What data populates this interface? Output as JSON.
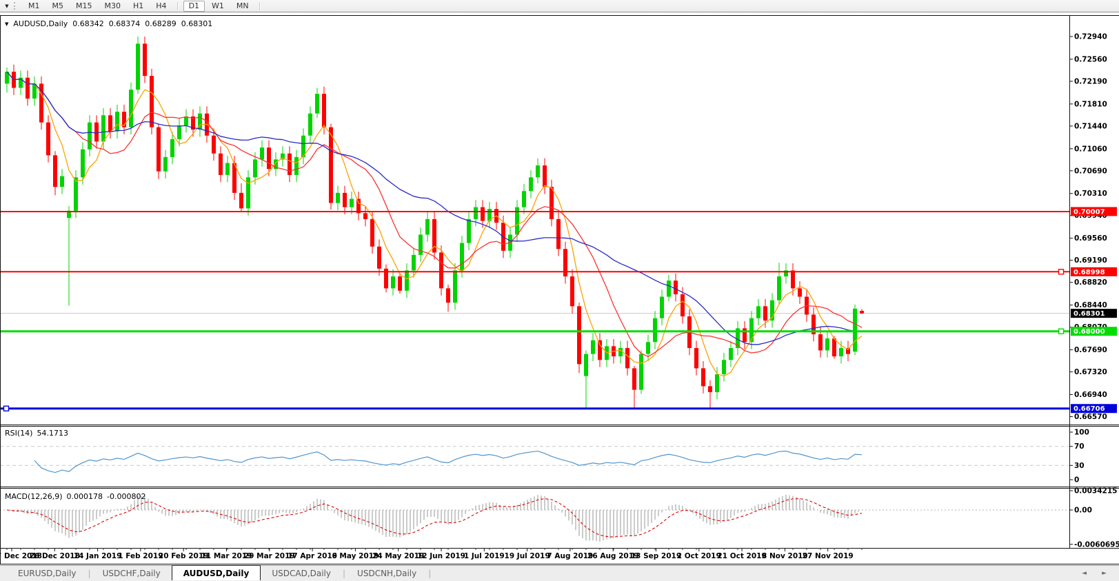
{
  "toolbar": {
    "dropdown_icon": "▼",
    "timeframes": [
      "M1",
      "M5",
      "M15",
      "M30",
      "H1",
      "H4",
      "D1",
      "W1",
      "MN"
    ],
    "active_timeframe": "D1",
    "separator_before": "D1"
  },
  "header": {
    "collapse_icon": "▼",
    "symbol": "AUDUSD,Daily",
    "open": "0.68342",
    "high": "0.68374",
    "low": "0.68289",
    "close": "0.68301"
  },
  "chart_data": {
    "type": "candlestick",
    "symbol": "AUDUSD",
    "timeframe": "Daily",
    "last_quote": {
      "open": 0.68342,
      "high": 0.68374,
      "low": 0.68289,
      "close": 0.68301
    },
    "price_axis_ticks": [
      "0.72940",
      "0.72560",
      "0.72190",
      "0.71810",
      "0.71440",
      "0.71060",
      "0.70690",
      "0.70310",
      "0.69940",
      "0.69560",
      "0.69190",
      "0.68820",
      "0.68440",
      "0.68070",
      "0.67690",
      "0.67320",
      "0.66940",
      "0.66570"
    ],
    "date_ticks": [
      "7 Dec 2018",
      "26 Dec 2018",
      "14 Jan 2019",
      "1 Feb 2019",
      "20 Feb 2019",
      "11 Mar 2019",
      "29 Mar 2019",
      "17 Apr 2019",
      "6 May 2019",
      "24 May 2019",
      "12 Jun 2019",
      "1 Jul 2019",
      "19 Jul 2019",
      "7 Aug 2019",
      "26 Aug 2019",
      "13 Sep 2019",
      "2 Oct 2019",
      "21 Oct 2019",
      "8 Nov 2019",
      "27 Nov 2019"
    ],
    "up_color": "#00d400",
    "down_color": "#ff0000",
    "default_wick": 0.0012,
    "candles": [
      [
        0.7215,
        0.7242,
        0.72,
        0.7235
      ],
      [
        0.7235,
        0.7208
      ],
      [
        0.7208,
        0.7225
      ],
      [
        0.7225,
        0.719
      ],
      [
        0.719,
        0.7215
      ],
      [
        0.7215,
        0.715
      ],
      [
        0.715,
        0.7095
      ],
      [
        0.7095,
        0.7102,
        0.7028,
        0.7042
      ],
      [
        0.7042,
        0.706
      ],
      [
        0.699,
        0.701,
        0.6843,
        0.7002
      ],
      [
        0.7002,
        0.7058
      ],
      [
        0.7058,
        0.7105
      ],
      [
        0.7105,
        0.715
      ],
      [
        0.715,
        0.7118
      ],
      [
        0.7118,
        0.7162
      ],
      [
        0.7162,
        0.7135
      ],
      [
        0.7135,
        0.7168
      ],
      [
        0.7168,
        0.7142
      ],
      [
        0.7142,
        0.7205
      ],
      [
        0.7205,
        0.7294,
        0.7198,
        0.7282
      ],
      [
        0.7282,
        0.7228
      ],
      [
        0.7228,
        0.7142
      ],
      [
        0.7142,
        0.7148,
        0.7055,
        0.7068
      ],
      [
        0.7068,
        0.7092
      ],
      [
        0.7092,
        0.7122
      ],
      [
        0.7122,
        0.7145
      ],
      [
        0.7145,
        0.716
      ],
      [
        0.716,
        0.7138
      ],
      [
        0.7138,
        0.7165
      ],
      [
        0.7165,
        0.7128
      ],
      [
        0.7128,
        0.7098
      ],
      [
        0.7098,
        0.7062
      ],
      [
        0.7062,
        0.7082
      ],
      [
        0.7082,
        0.7032
      ],
      [
        0.7032,
        0.7048,
        0.7,
        0.7006
      ],
      [
        0.7006,
        0.7058
      ],
      [
        0.7058,
        0.7088
      ],
      [
        0.7088,
        0.7108
      ],
      [
        0.7108,
        0.7072
      ],
      [
        0.7072,
        0.7088
      ],
      [
        0.7088,
        0.7098
      ],
      [
        0.7098,
        0.7062
      ],
      [
        0.7062,
        0.7092
      ],
      [
        0.7092,
        0.7128
      ],
      [
        0.7128,
        0.7165
      ],
      [
        0.7165,
        0.7208,
        0.7158,
        0.7198
      ],
      [
        0.7198,
        0.7142
      ],
      [
        0.7142,
        0.7148,
        0.7004,
        0.7015
      ],
      [
        0.7015,
        0.7032
      ],
      [
        0.7032,
        0.7008
      ],
      [
        0.7008,
        0.7022
      ],
      [
        0.7022,
        0.6998
      ],
      [
        0.6998,
        0.6988
      ],
      [
        0.6988,
        0.6942
      ],
      [
        0.6942,
        0.6905
      ],
      [
        0.6905,
        0.6912,
        0.6865,
        0.6872
      ],
      [
        0.6872,
        0.6892
      ],
      [
        0.6892,
        0.6898,
        0.6863,
        0.6868
      ],
      [
        0.6868,
        0.6902
      ],
      [
        0.6902,
        0.6928
      ],
      [
        0.6928,
        0.6962
      ],
      [
        0.6962,
        0.6988
      ],
      [
        0.6988,
        0.6932
      ],
      [
        0.6932,
        0.6872
      ],
      [
        0.6872,
        0.6878,
        0.6833,
        0.6848
      ],
      [
        0.6848,
        0.6902
      ],
      [
        0.6902,
        0.6948
      ],
      [
        0.6948,
        0.6988
      ],
      [
        0.6988,
        0.7008
      ],
      [
        0.7008,
        0.6985
      ],
      [
        0.6985,
        0.7005
      ],
      [
        0.7005,
        0.6982
      ],
      [
        0.6982,
        0.6935
      ],
      [
        0.6935,
        0.6962
      ],
      [
        0.6962,
        0.7008
      ],
      [
        0.7008,
        0.7035
      ],
      [
        0.7035,
        0.7058
      ],
      [
        0.7058,
        0.709,
        0.7048,
        0.7078
      ],
      [
        0.7078,
        0.7042
      ],
      [
        0.7042,
        0.6988
      ],
      [
        0.6988,
        0.6938
      ],
      [
        0.6938,
        0.6892
      ],
      [
        0.6892,
        0.6842
      ],
      [
        0.6842,
        0.6848,
        0.673,
        0.6745
      ],
      [
        0.6725,
        0.6768,
        0.6671,
        0.6762
      ],
      [
        0.6762,
        0.6785
      ],
      [
        0.6785,
        0.6752
      ],
      [
        0.6752,
        0.6775
      ],
      [
        0.6775,
        0.6758
      ],
      [
        0.6758,
        0.6772
      ],
      [
        0.6772,
        0.6738
      ],
      [
        0.6738,
        0.6742,
        0.6671,
        0.6702
      ],
      [
        0.6702,
        0.6768,
        0.6695,
        0.6762
      ],
      [
        0.6762,
        0.6782
      ],
      [
        0.6782,
        0.6822
      ],
      [
        0.6822,
        0.6858
      ],
      [
        0.6858,
        0.6895,
        0.685,
        0.6885
      ],
      [
        0.6885,
        0.6862
      ],
      [
        0.6862,
        0.6825
      ],
      [
        0.6825,
        0.6772
      ],
      [
        0.6772,
        0.6738
      ],
      [
        0.6738,
        0.6708
      ],
      [
        0.6708,
        0.6718,
        0.6672,
        0.6698
      ],
      [
        0.6698,
        0.6728
      ],
      [
        0.6728,
        0.6752
      ],
      [
        0.6752,
        0.6772
      ],
      [
        0.6772,
        0.6805
      ],
      [
        0.6805,
        0.6782
      ],
      [
        0.6782,
        0.6822
      ],
      [
        0.6822,
        0.6842
      ],
      [
        0.6842,
        0.6818
      ],
      [
        0.6818,
        0.6852
      ],
      [
        0.6852,
        0.6915,
        0.6845,
        0.6892
      ],
      [
        0.6892,
        0.6902
      ],
      [
        0.6902,
        0.6872
      ],
      [
        0.6872,
        0.6858
      ],
      [
        0.6858,
        0.6828
      ],
      [
        0.6828,
        0.6795
      ],
      [
        0.6795,
        0.6768
      ],
      [
        0.6768,
        0.6788
      ],
      [
        0.6788,
        0.6792,
        0.6754,
        0.6758
      ],
      [
        0.6758,
        0.6772
      ],
      [
        0.6772,
        0.6762
      ],
      [
        0.6766,
        0.6845,
        0.676,
        0.6838
      ],
      [
        0.68342,
        0.68374,
        0.68289,
        0.68301
      ]
    ],
    "moving_averages": [
      {
        "name": "fast",
        "period": 10,
        "color": "#ffa000"
      },
      {
        "name": "medium",
        "period": 22,
        "color": "#ff3030"
      },
      {
        "name": "slow",
        "period": 54,
        "color": "#2929c8"
      }
    ],
    "levels": [
      {
        "price": 0.70007,
        "label": "0.70007",
        "color": "#ff0000",
        "thickness": 2,
        "marker": "none"
      },
      {
        "price": 0.68998,
        "label": "0.68998",
        "color": "#ff0000",
        "thickness": 2,
        "marker": "right"
      },
      {
        "price": 0.68,
        "label": "0.68000",
        "color": "#00dd00",
        "thickness": 3,
        "marker": "right"
      },
      {
        "price": 0.66706,
        "label": "0.66706",
        "color": "#0000dd",
        "thickness": 3,
        "marker": "left"
      }
    ],
    "current_price": {
      "value": 0.68301,
      "label": "0.68301",
      "line_color": "#c8c8c8",
      "box_color": "#000000"
    },
    "rsi": {
      "name": "RSI(14)",
      "value": "54.1713",
      "period": 14,
      "upper": 70,
      "lower": 30,
      "color": "#4f94cd",
      "ticks": [
        "100",
        "70",
        "30",
        "0"
      ]
    },
    "macd": {
      "name": "MACD(12,26,9)",
      "value": "0.000178",
      "signal_value": "-0.000802",
      "fast": 12,
      "slow": 26,
      "signal": 9,
      "hist_color": "#a8a8a8",
      "signal_color": "#e00000",
      "ticks": [
        "0.0034215",
        "0.00",
        "-0.0060695"
      ]
    }
  },
  "tab_bar": {
    "tabs": [
      "EURUSD,Daily",
      "USDCHF,Daily",
      "AUDUSD,Daily",
      "USDCAD,Daily",
      "USDCNH,Daily"
    ],
    "active_tab": "AUDUSD,Daily",
    "prev_icon": "◄",
    "next_icon": "►"
  }
}
